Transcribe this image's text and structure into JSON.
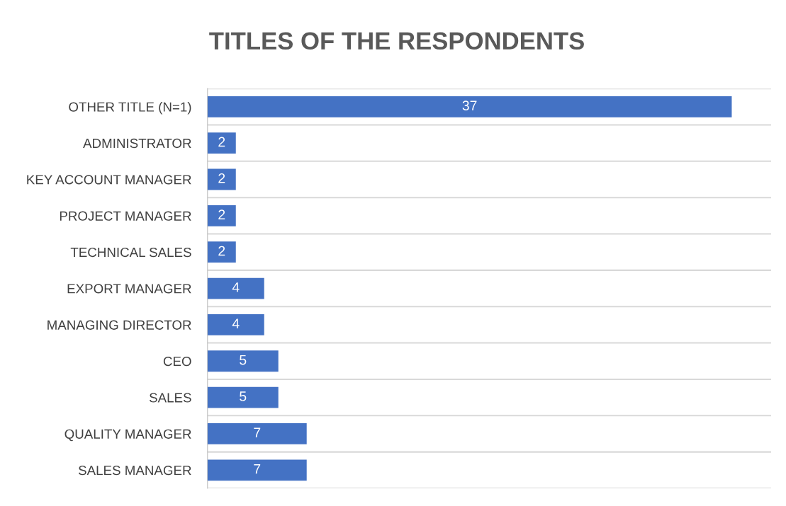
{
  "chart_data": {
    "type": "bar",
    "orientation": "horizontal",
    "title": "TITLES OF THE RESPONDENTS",
    "categories": [
      "OTHER TITLE (N=1)",
      "ADMINISTRATOR",
      "KEY ACCOUNT MANAGER",
      "PROJECT MANAGER",
      "TECHNICAL SALES",
      "EXPORT MANAGER",
      "MANAGING DIRECTOR",
      "CEO",
      "SALES",
      "QUALITY MANAGER",
      "SALES MANAGER"
    ],
    "values": [
      37,
      2,
      2,
      2,
      2,
      4,
      4,
      5,
      5,
      7,
      7
    ],
    "color": "#4472c4",
    "data_labels": true,
    "grid": "y"
  }
}
